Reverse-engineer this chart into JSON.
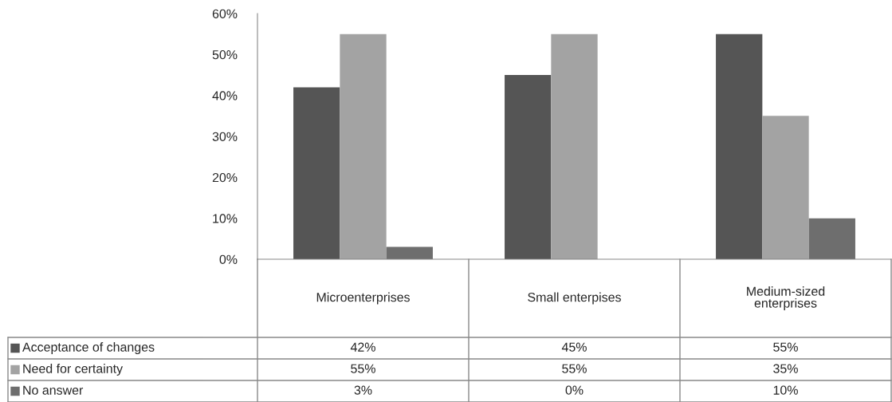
{
  "chart_data": {
    "type": "bar",
    "categories": [
      "Microenterprises",
      "Small enterpises",
      "Medium-sized\nenterprises"
    ],
    "series": [
      {
        "name": "Acceptance of changes",
        "color": "#555555",
        "values": [
          42,
          45,
          55
        ],
        "value_labels": [
          "42%",
          "45%",
          "55%"
        ]
      },
      {
        "name": "Need for certainty",
        "color": "#a3a3a3",
        "values": [
          55,
          55,
          35
        ],
        "value_labels": [
          "55%",
          "55%",
          "35%"
        ]
      },
      {
        "name": "No answer",
        "color": "#6e6e6e",
        "values": [
          3,
          0,
          10
        ],
        "value_labels": [
          "3%",
          "0%",
          "10%"
        ]
      }
    ],
    "ylim": [
      0,
      60
    ],
    "yticks": [
      {
        "value": 0,
        "label": "0%"
      },
      {
        "value": 10,
        "label": "10%"
      },
      {
        "value": 20,
        "label": "20%"
      },
      {
        "value": 30,
        "label": "30%"
      },
      {
        "value": 40,
        "label": "40%"
      },
      {
        "value": 50,
        "label": "50%"
      },
      {
        "value": 60,
        "label": "60%"
      }
    ],
    "grid": false,
    "legend": "bottom"
  }
}
